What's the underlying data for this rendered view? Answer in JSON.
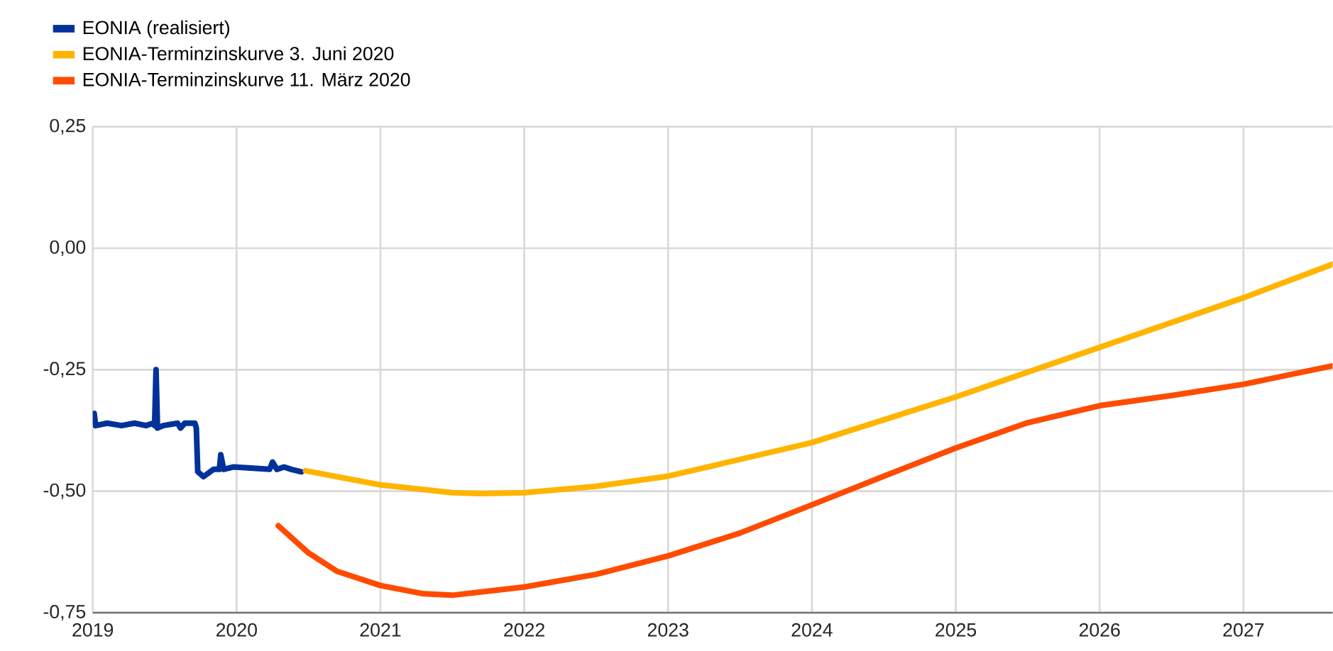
{
  "chart_data": {
    "type": "line",
    "xlim": [
      2019,
      2027.62
    ],
    "ylim": [
      -0.75,
      0.25
    ],
    "xticks": [
      2019,
      2020,
      2021,
      2022,
      2023,
      2024,
      2025,
      2026,
      2027
    ],
    "yticks": [
      {
        "value": -0.75,
        "label": "-0,75"
      },
      {
        "value": -0.5,
        "label": "-0,50"
      },
      {
        "value": -0.25,
        "label": "-0,25"
      },
      {
        "value": 0,
        "label": "0,00"
      },
      {
        "value": 0.25,
        "label": "0,25"
      }
    ],
    "grid": true,
    "legend": "top left",
    "marker": "none",
    "line_style": "solid",
    "series": [
      {
        "name": "EONIA (realisiert)",
        "color": "#003299",
        "x": [
          2019.01,
          2019.02,
          2019.1,
          2019.2,
          2019.29,
          2019.37,
          2019.42,
          2019.43,
          2019.44,
          2019.45,
          2019.49,
          2019.59,
          2019.61,
          2019.64,
          2019.71,
          2019.72,
          2019.73,
          2019.77,
          2019.84,
          2019.88,
          2019.89,
          2019.91,
          2019.98,
          2020.08,
          2020.23,
          2020.25,
          2020.28,
          2020.33,
          2020.38,
          2020.45
        ],
        "values": [
          -0.34,
          -0.365,
          -0.36,
          -0.365,
          -0.36,
          -0.365,
          -0.36,
          -0.365,
          -0.25,
          -0.37,
          -0.365,
          -0.36,
          -0.37,
          -0.36,
          -0.36,
          -0.37,
          -0.46,
          -0.47,
          -0.455,
          -0.455,
          -0.425,
          -0.455,
          -0.45,
          -0.452,
          -0.455,
          -0.44,
          -0.455,
          -0.45,
          -0.455,
          -0.46
        ]
      },
      {
        "name": "EONIA-Terminzinskurve 3. Juni 2020",
        "color": "#ffb400",
        "x": [
          2020.48,
          2021,
          2021.5,
          2021.7,
          2022,
          2022.5,
          2023,
          2024,
          2025,
          2026,
          2027,
          2027.62
        ],
        "values": [
          -0.458,
          -0.487,
          -0.503,
          -0.505,
          -0.503,
          -0.49,
          -0.469,
          -0.4,
          -0.306,
          -0.204,
          -0.102,
          -0.033
        ]
      },
      {
        "name": "EONIA-Terminzinskurve 11. März 2020",
        "color": "#ff4b00",
        "x": [
          2020.29,
          2020.5,
          2020.7,
          2021,
          2021.3,
          2021.5,
          2022,
          2022.5,
          2023,
          2023.5,
          2024,
          2024.5,
          2025,
          2025.5,
          2026,
          2026.5,
          2027,
          2027.62
        ],
        "values": [
          -0.571,
          -0.627,
          -0.665,
          -0.694,
          -0.711,
          -0.714,
          -0.697,
          -0.671,
          -0.633,
          -0.586,
          -0.528,
          -0.469,
          -0.411,
          -0.359,
          -0.324,
          -0.303,
          -0.28,
          -0.242
        ]
      }
    ]
  }
}
